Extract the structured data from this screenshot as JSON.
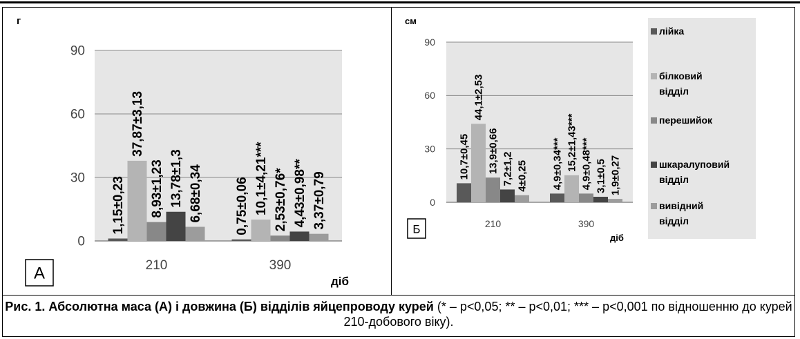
{
  "caption": {
    "title": "Рис. 1. Абсолютна маса (А) і довжина (Б) відділів яйцепроводу курей",
    "note": "(* – р<0,05; ** – р<0,01; *** – р<0,001 по відношенню до курей 210-добового віку)."
  },
  "colors": {
    "background": "#e6e6e6",
    "series": [
      "#595959",
      "#b4b4b4",
      "#888888",
      "#444444",
      "#9c9c9c"
    ]
  },
  "chart_data": [
    {
      "type": "bar",
      "panel": "А",
      "ylabel": "г",
      "xlabel": "діб",
      "categories": [
        "210",
        "390"
      ],
      "ylim": [
        0,
        90
      ],
      "yticks": [
        "0",
        "30",
        "60",
        "90"
      ],
      "grid": true,
      "legend": false,
      "series": [
        {
          "values": [
            1.15,
            0.75
          ],
          "labels": [
            "1,15±0,23",
            "0,75±0,06"
          ]
        },
        {
          "values": [
            37.87,
            10.1
          ],
          "labels": [
            "37,87±3,13",
            "10,1±4,21***"
          ]
        },
        {
          "values": [
            8.93,
            2.53
          ],
          "labels": [
            "8,93±1,23",
            "2,53±0,76*"
          ]
        },
        {
          "values": [
            13.78,
            4.43
          ],
          "labels": [
            "13,78±1,3",
            "4,43±0,98**"
          ]
        },
        {
          "values": [
            6.68,
            3.37
          ],
          "labels": [
            "6,68±0,34",
            "3,37±0,79"
          ]
        }
      ]
    },
    {
      "type": "bar",
      "panel": "Б",
      "ylabel": "см",
      "xlabel": "діб",
      "categories": [
        "210",
        "390"
      ],
      "ylim": [
        0,
        90
      ],
      "yticks": [
        "0",
        "30",
        "60",
        "90"
      ],
      "grid": true,
      "legend": "right",
      "series": [
        {
          "name": "лійка",
          "values": [
            10.7,
            4.9
          ],
          "labels": [
            "10,7±0,45",
            "4,9±0,34***"
          ]
        },
        {
          "name": "білковий відділ",
          "values": [
            44.1,
            15.2
          ],
          "labels": [
            "44,1±2,53",
            "15,2±1,43***"
          ]
        },
        {
          "name": "перешийок",
          "values": [
            13.9,
            4.9
          ],
          "labels": [
            "13,9±0,66",
            "4,9±0,48***"
          ]
        },
        {
          "name": "шкаралуповий відділ",
          "values": [
            7.2,
            3.1
          ],
          "labels": [
            "7,2±1,2",
            "3,1±0,5"
          ]
        },
        {
          "name": "вивідний відділ",
          "values": [
            4,
            1.9
          ],
          "labels": [
            "4±0,25",
            "1,9±0,27"
          ]
        }
      ]
    }
  ]
}
